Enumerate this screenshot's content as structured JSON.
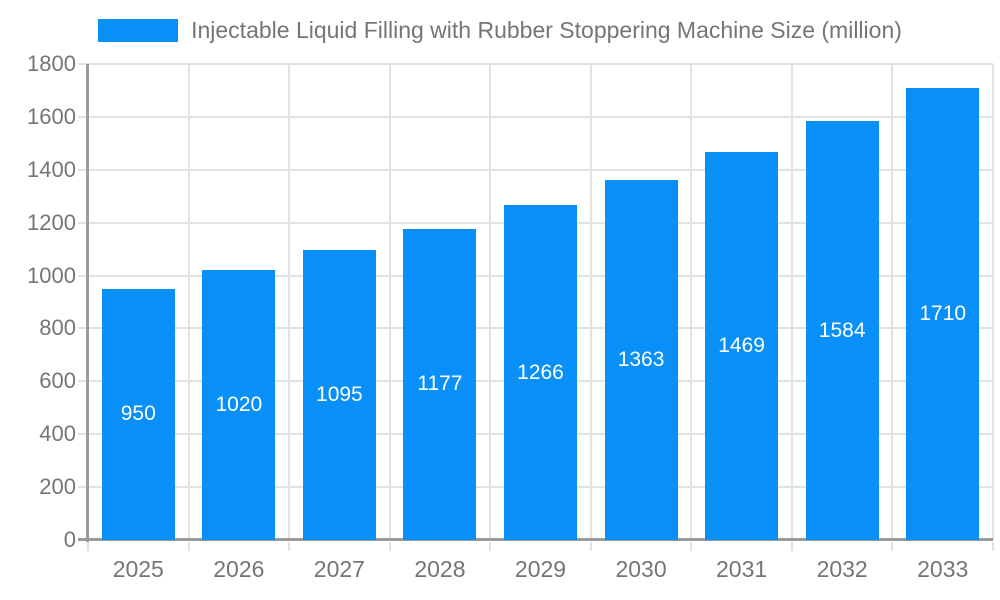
{
  "legend": {
    "label": "Injectable Liquid Filling with Rubber Stoppering Machine Size (million)"
  },
  "chart_data": {
    "type": "bar",
    "title": "Injectable Liquid Filling with Rubber Stoppering Machine Size (million)",
    "categories": [
      "2025",
      "2026",
      "2027",
      "2028",
      "2029",
      "2030",
      "2031",
      "2032",
      "2033"
    ],
    "values": [
      950,
      1020,
      1095,
      1177,
      1266,
      1363,
      1469,
      1584,
      1710
    ],
    "xlabel": "",
    "ylabel": "",
    "ylim": [
      0,
      1800
    ],
    "ytick_step": 200,
    "ytick_labels": [
      "0",
      "200",
      "400",
      "600",
      "800",
      "1000",
      "1200",
      "1400",
      "1600",
      "1800"
    ],
    "grid": true,
    "legend_position": "top",
    "bar_labels_inside": true,
    "colors": {
      "bar": "#0890f8",
      "grid": "#e2e2e2",
      "axis": "#9a9a9a",
      "text": "#757575",
      "bar_label": "#ffffff"
    }
  }
}
